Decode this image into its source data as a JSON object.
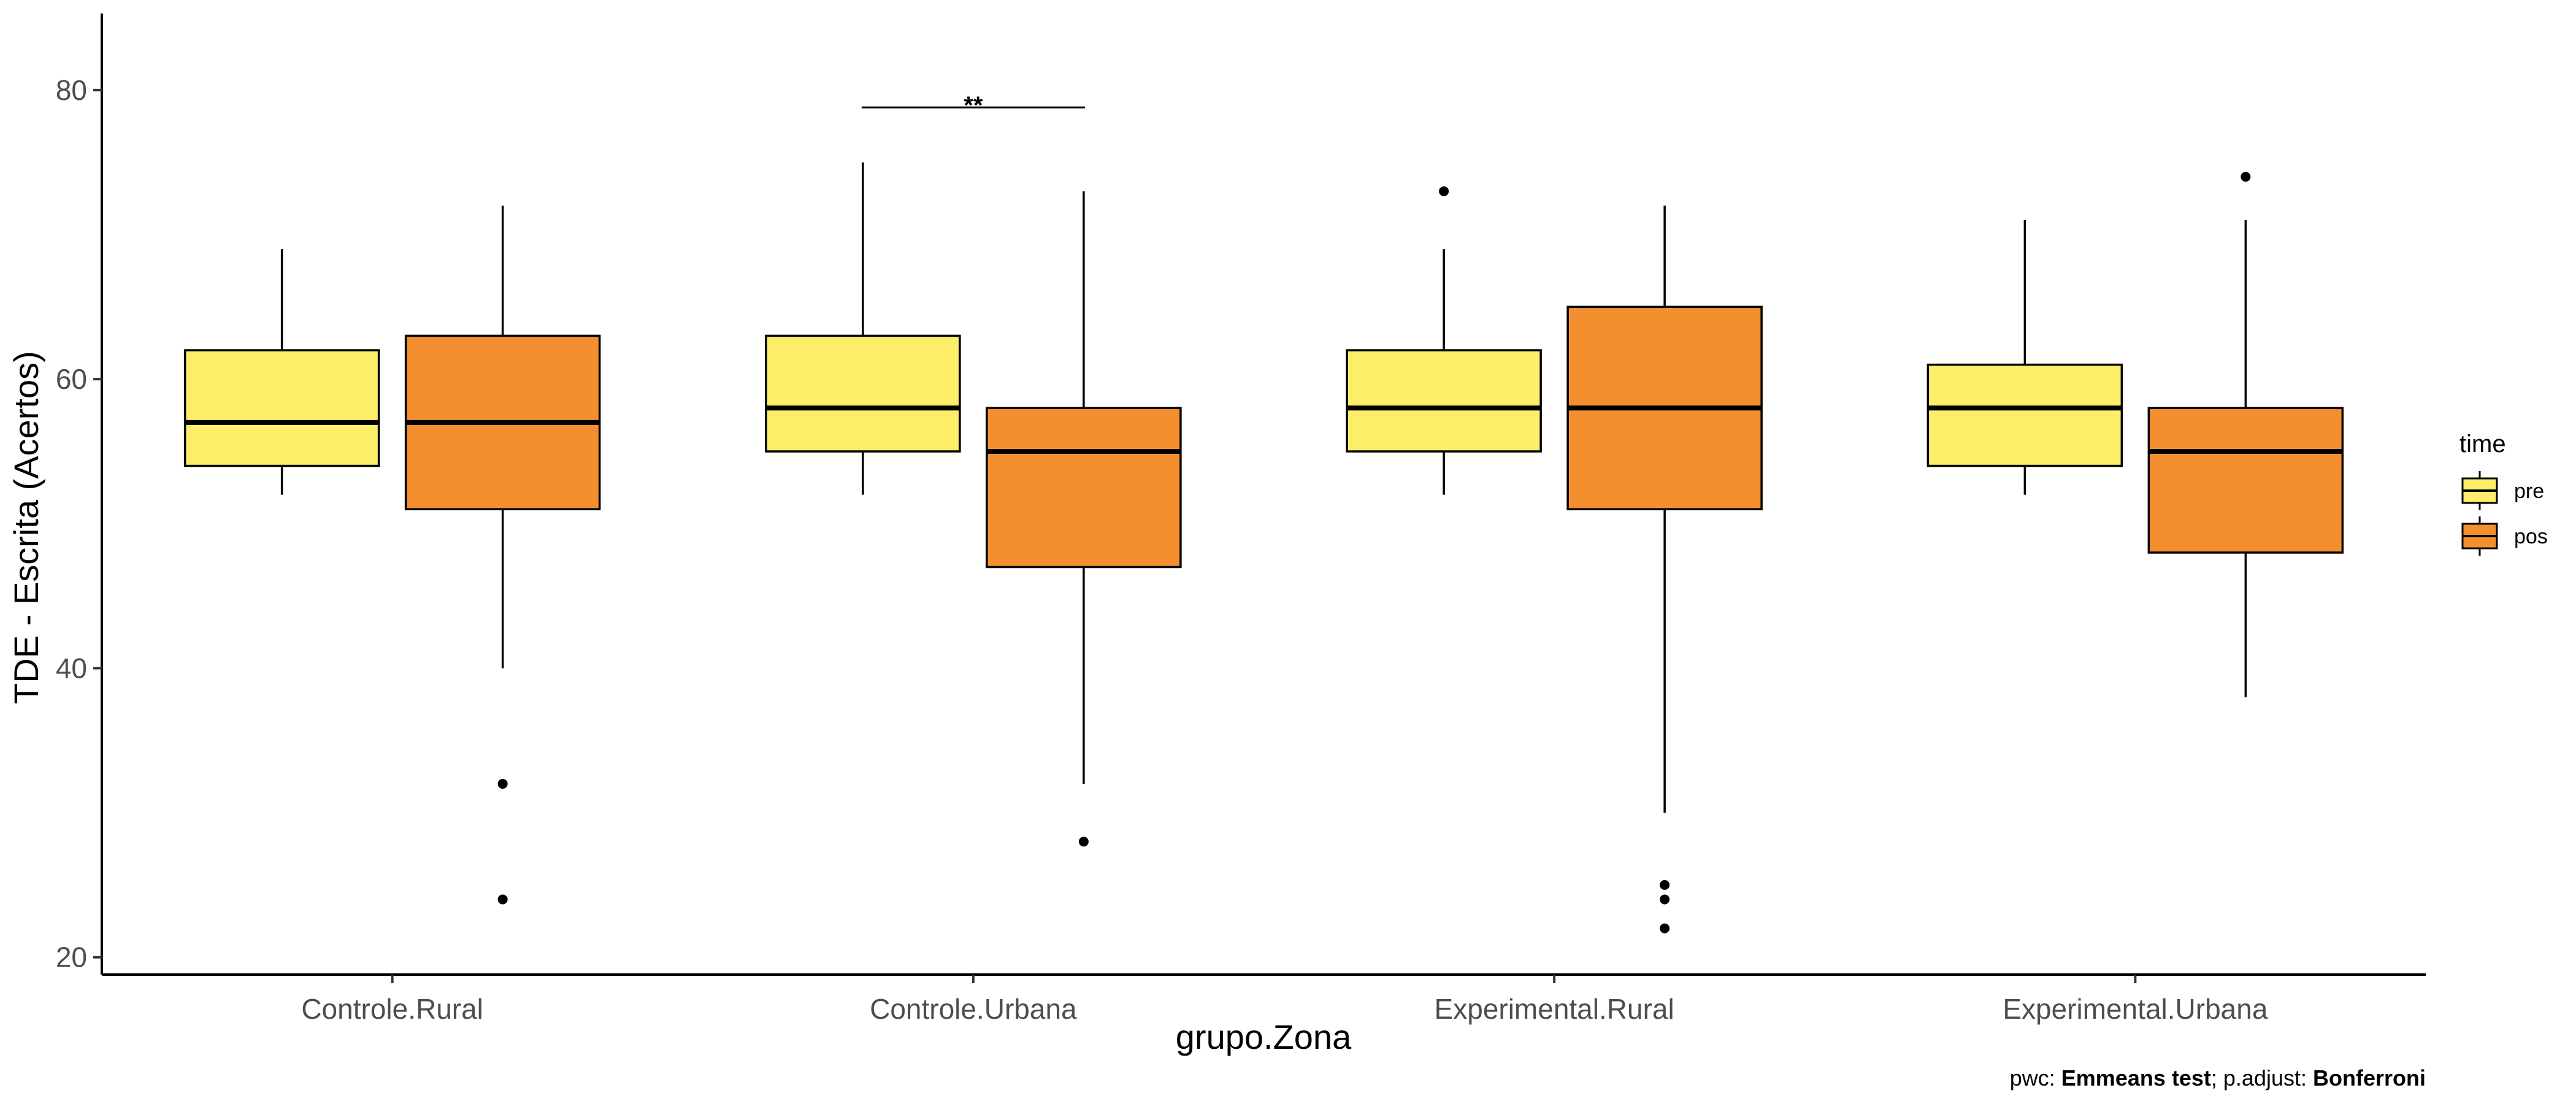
{
  "chart_data": {
    "type": "boxplot",
    "title": "",
    "xlabel": "grupo.Zona",
    "ylabel": "TDE - Escrita (Acertos)",
    "ylim": [
      18.8,
      85.3
    ],
    "yticks": [
      20,
      40,
      60,
      80
    ],
    "grid": false,
    "categories": [
      "Controle.Rural",
      "Controle.Urbana",
      "Experimental.Rural",
      "Experimental.Urbana"
    ],
    "legend": {
      "title": "time",
      "position": "right",
      "entries": [
        {
          "label": "pre",
          "color": "#FDEE6A"
        },
        {
          "label": "pos",
          "color": "#F38F2F"
        }
      ]
    },
    "series": [
      {
        "name": "pre",
        "color": "#FDEE6A",
        "boxes": [
          {
            "lower_whisker": 52,
            "q1": 54,
            "median": 57,
            "q3": 62,
            "upper_whisker": 69,
            "outliers": []
          },
          {
            "lower_whisker": 52,
            "q1": 55,
            "median": 58,
            "q3": 63,
            "upper_whisker": 75,
            "outliers": []
          },
          {
            "lower_whisker": 52,
            "q1": 55,
            "median": 58,
            "q3": 62,
            "upper_whisker": 69,
            "outliers": [
              73
            ]
          },
          {
            "lower_whisker": 52,
            "q1": 54,
            "median": 58,
            "q3": 61,
            "upper_whisker": 71,
            "outliers": []
          }
        ]
      },
      {
        "name": "pos",
        "color": "#F38F2F",
        "boxes": [
          {
            "lower_whisker": 40,
            "q1": 51,
            "median": 57,
            "q3": 63,
            "upper_whisker": 72,
            "outliers": [
              32,
              24
            ]
          },
          {
            "lower_whisker": 32,
            "q1": 47,
            "median": 55,
            "q3": 58,
            "upper_whisker": 73,
            "outliers": [
              28
            ]
          },
          {
            "lower_whisker": 30,
            "q1": 51,
            "median": 58,
            "q3": 65,
            "upper_whisker": 72,
            "outliers": [
              25,
              24,
              22
            ]
          },
          {
            "lower_whisker": 38,
            "q1": 48,
            "median": 55,
            "q3": 58,
            "upper_whisker": 71,
            "outliers": [
              74
            ]
          }
        ]
      }
    ],
    "annotations": [
      {
        "type": "significance",
        "category": "Controle.Urbana",
        "label": "**",
        "y": 78.8
      }
    ],
    "caption": {
      "prefix": "pwc: ",
      "test": "Emmeans test",
      "middle": "; p.adjust: ",
      "adjust": "Bonferroni"
    }
  }
}
